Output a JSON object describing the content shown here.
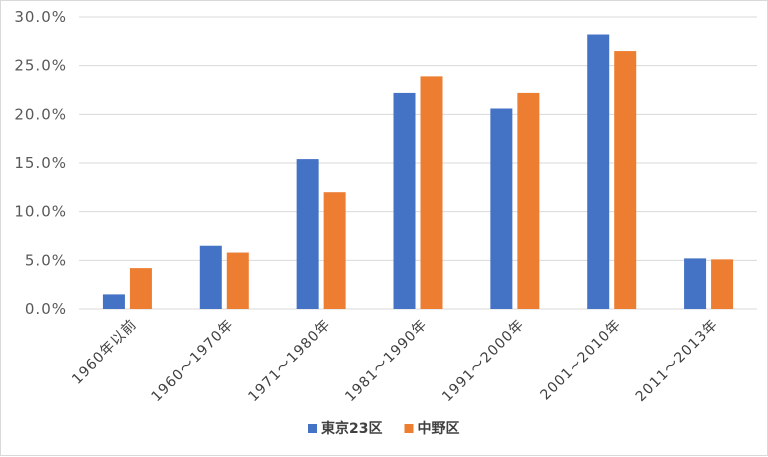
{
  "chart_data": {
    "type": "bar",
    "categories": [
      "1960年以前",
      "1960～1970年",
      "1971～1980年",
      "1981～1990年",
      "1991～2000年",
      "2001~2010年",
      "2011～2013年"
    ],
    "series": [
      {
        "name": "東京23区",
        "color": "#4472c4",
        "values": [
          1.5,
          6.5,
          15.4,
          22.2,
          20.6,
          28.2,
          5.2
        ]
      },
      {
        "name": "中野区",
        "color": "#ed7d31",
        "values": [
          4.2,
          5.8,
          12.0,
          23.9,
          22.2,
          26.5,
          5.1
        ]
      }
    ],
    "yticks": [
      "0.0%",
      "5.0%",
      "10.0%",
      "15.0%",
      "20.0%",
      "25.0%",
      "30.0%"
    ],
    "ylim": [
      0,
      30
    ],
    "grid": true,
    "legend_position": "bottom"
  }
}
